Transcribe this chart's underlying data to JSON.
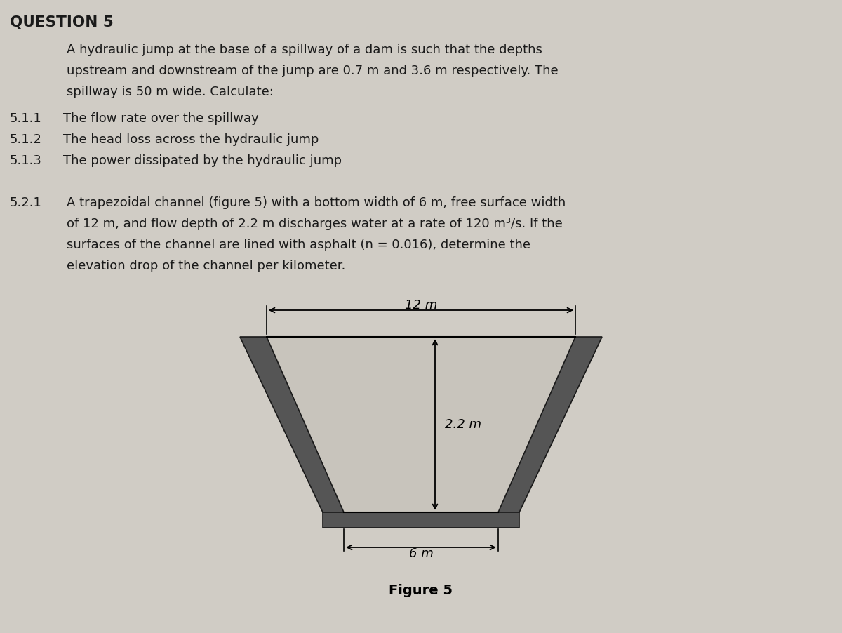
{
  "title": "QUESTION 5",
  "bg_color": "#d0ccc5",
  "text_color": "#1a1a1a",
  "para1_lines": [
    "A hydraulic jump at the base of a spillway of a dam is such that the depths",
    "upstream and downstream of the jump are 0.7 m and 3.6 m respectively. The",
    "spillway is 50 m wide. Calculate:"
  ],
  "items_511_513": [
    [
      "5.1.1",
      "The flow rate over the spillway"
    ],
    [
      "5.1.2",
      "The head loss across the hydraulic jump"
    ],
    [
      "5.1.3",
      "The power dissipated by the hydraulic jump"
    ]
  ],
  "para2_label": "5.2.1",
  "para2_lines": [
    "A trapezoidal channel (figure 5) with a bottom width of 6 m, free surface width",
    "of 12 m, and flow depth of 2.2 m discharges water at a rate of 120 m³/s. If the",
    "surfaces of the channel are lined with asphalt (n = 0.016), determine the",
    "elevation drop of the channel per kilometer."
  ],
  "figure_label": "Figure 5",
  "wall_color": "#555555",
  "inner_color": "#c8c4bc",
  "top_label": "12 m",
  "bot_label": "6 m",
  "depth_label": "2.2 m"
}
